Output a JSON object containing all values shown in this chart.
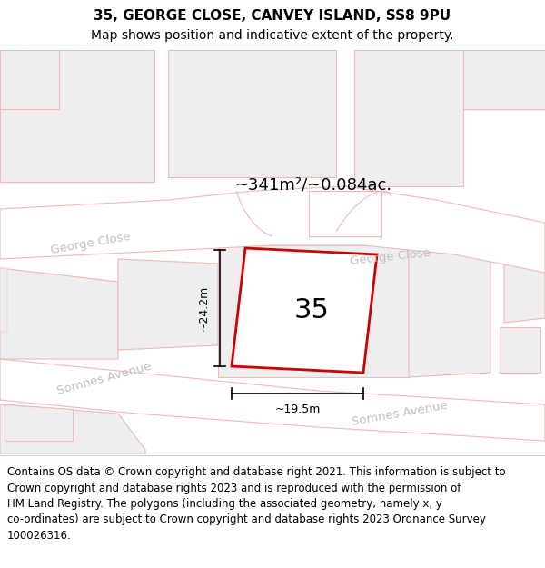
{
  "title_line1": "35, GEORGE CLOSE, CANVEY ISLAND, SS8 9PU",
  "title_line2": "Map shows position and indicative extent of the property.",
  "area_label": "~341m²/~0.084ac.",
  "property_number": "35",
  "width_label": "~19.5m",
  "height_label": "~24.2m",
  "footer_text": "Contains OS data © Crown copyright and database right 2021. This information is subject to Crown copyright and database rights 2023 and is reproduced with the permission of HM Land Registry. The polygons (including the associated geometry, namely x, y co-ordinates) are subject to Crown copyright and database rights 2023 Ordnance Survey 100026316.",
  "map_bg": "#ffffff",
  "road_fill": "#ffffff",
  "road_ec": "#f0b8b8",
  "block_fill": "#eeeeee",
  "block_ec": "#f0b8b8",
  "plot_stroke": "#cc0000",
  "plot_fill": "#ffffff",
  "road_label_color": "#c0c0c0",
  "title_fontsize": 11,
  "subtitle_fontsize": 10,
  "footer_fontsize": 8.5
}
